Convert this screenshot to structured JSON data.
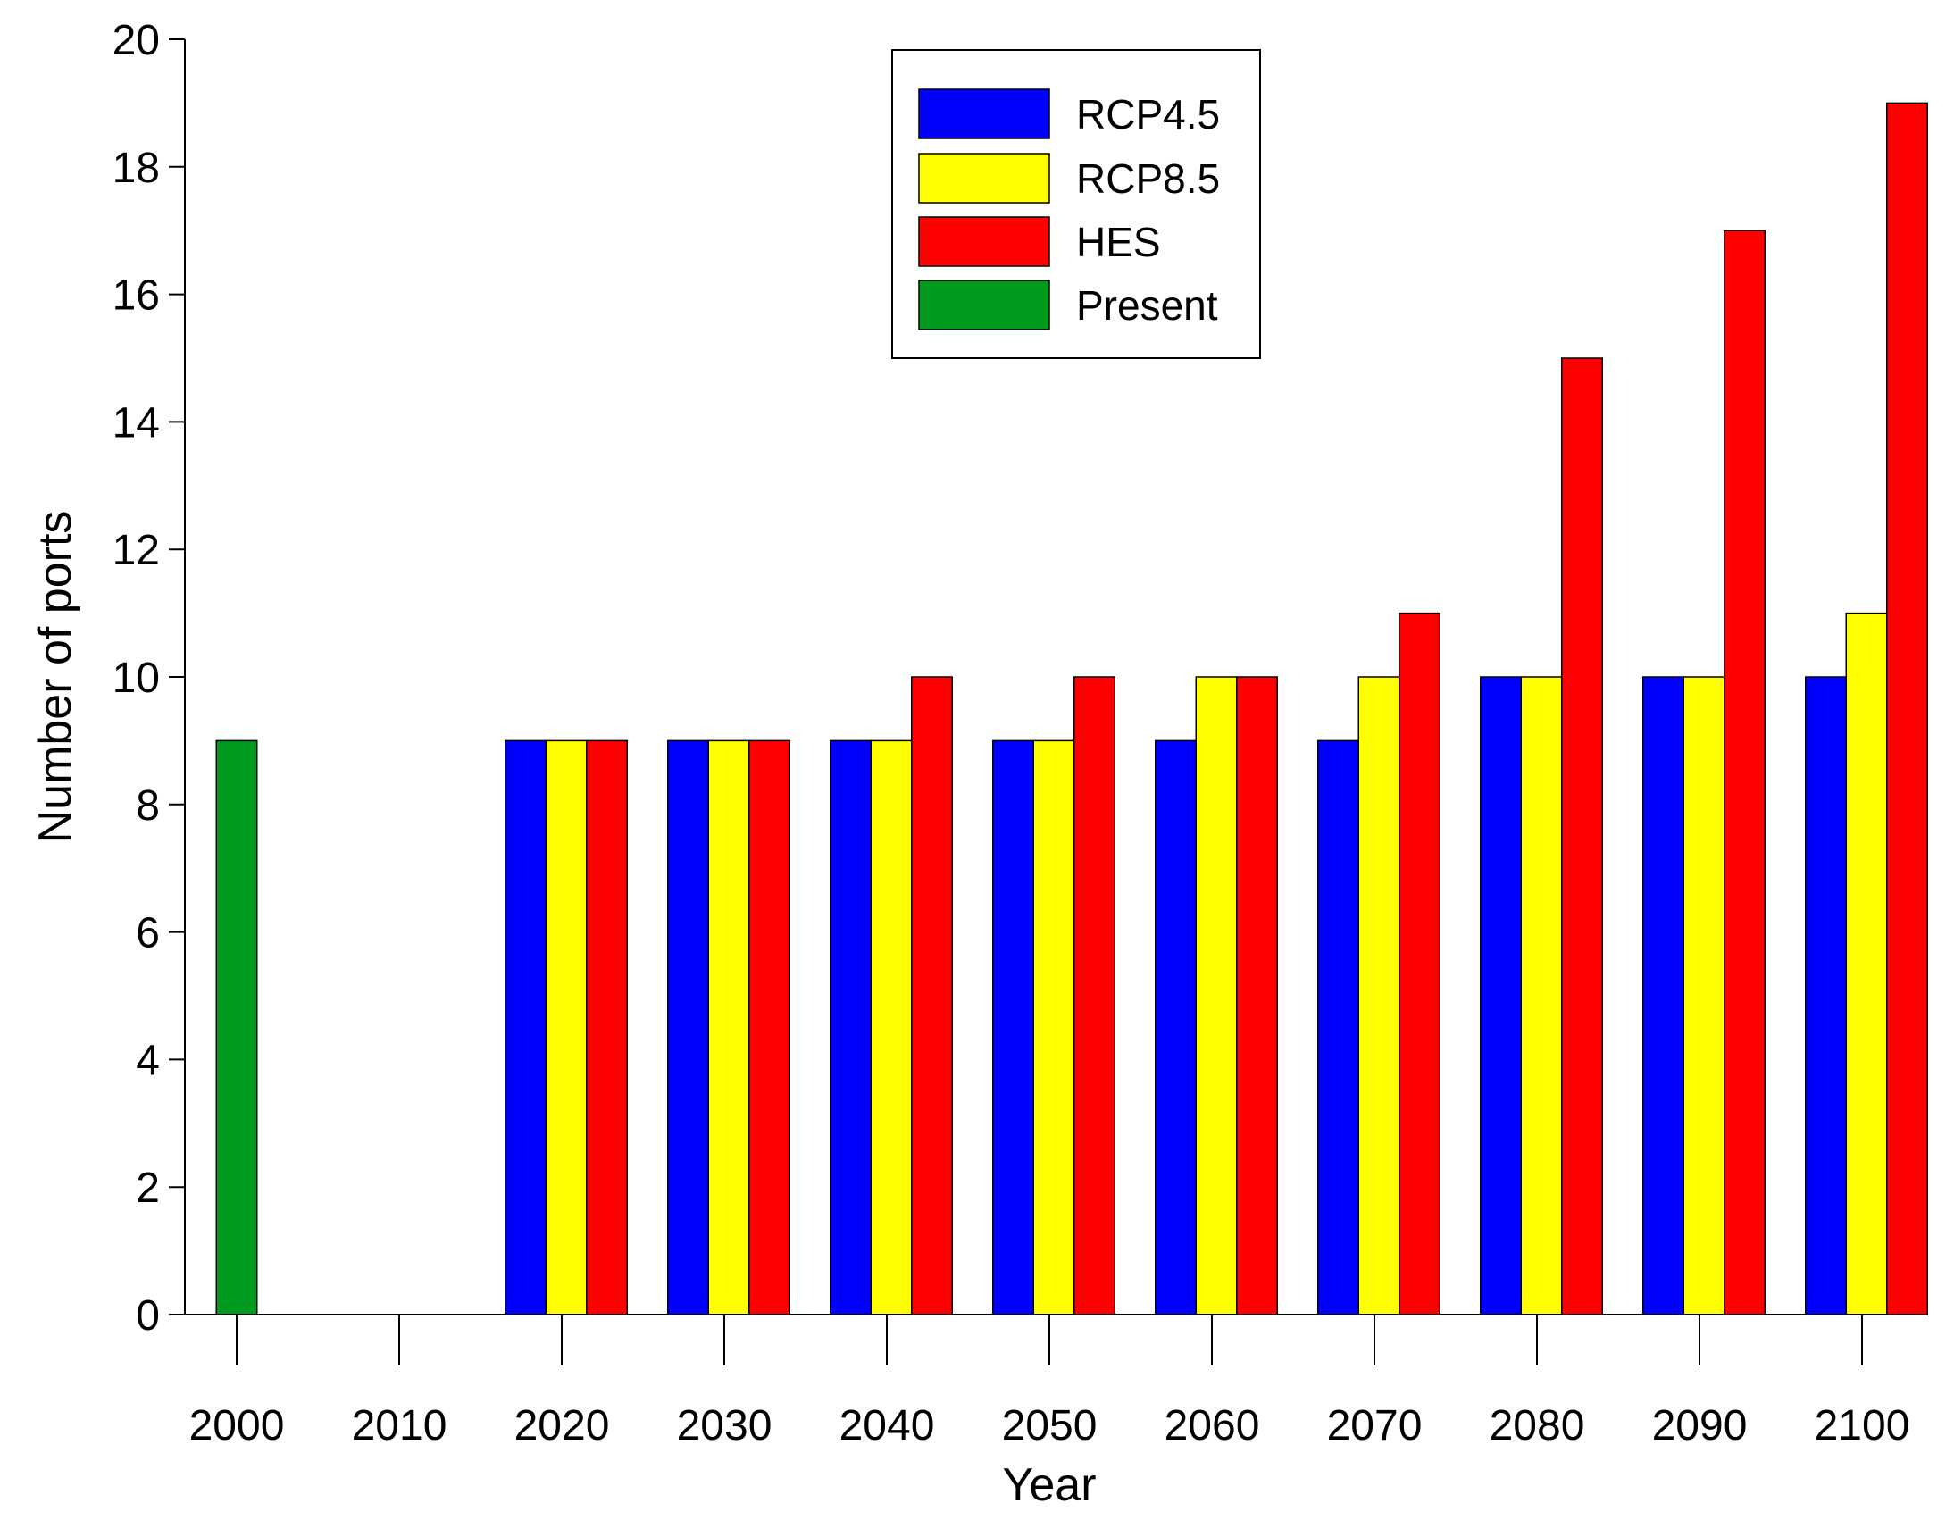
{
  "chart_data": {
    "type": "bar",
    "title": "",
    "xlabel": "Year",
    "ylabel": "Number of ports",
    "ylim": [
      0,
      20
    ],
    "yticks": [
      0,
      2,
      4,
      6,
      8,
      10,
      12,
      14,
      16,
      18,
      20
    ],
    "ytick_labels": [
      "0",
      "2",
      "4",
      "6",
      "8",
      "10",
      "12",
      "14",
      "16",
      "18",
      "20"
    ],
    "categories": [
      "2000",
      "2010",
      "2020",
      "2030",
      "2040",
      "2050",
      "2060",
      "2070",
      "2080",
      "2090",
      "2100"
    ],
    "series": [
      {
        "name": "RCP4.5",
        "color": "#0000FF",
        "values": [
          null,
          null,
          9,
          9,
          9,
          9,
          9,
          9,
          10,
          10,
          10
        ]
      },
      {
        "name": "RCP8.5",
        "color": "#FFFF00",
        "values": [
          null,
          null,
          9,
          9,
          9,
          9,
          10,
          10,
          10,
          10,
          11
        ]
      },
      {
        "name": "HES",
        "color": "#FF0000",
        "values": [
          null,
          null,
          9,
          9,
          10,
          10,
          10,
          11,
          15,
          17,
          19
        ]
      },
      {
        "name": "Present",
        "color": "#009A1F",
        "values": [
          9,
          null,
          null,
          null,
          null,
          null,
          null,
          null,
          null,
          null,
          null
        ]
      }
    ],
    "legend": {
      "position": "top-center"
    },
    "grid": false
  }
}
